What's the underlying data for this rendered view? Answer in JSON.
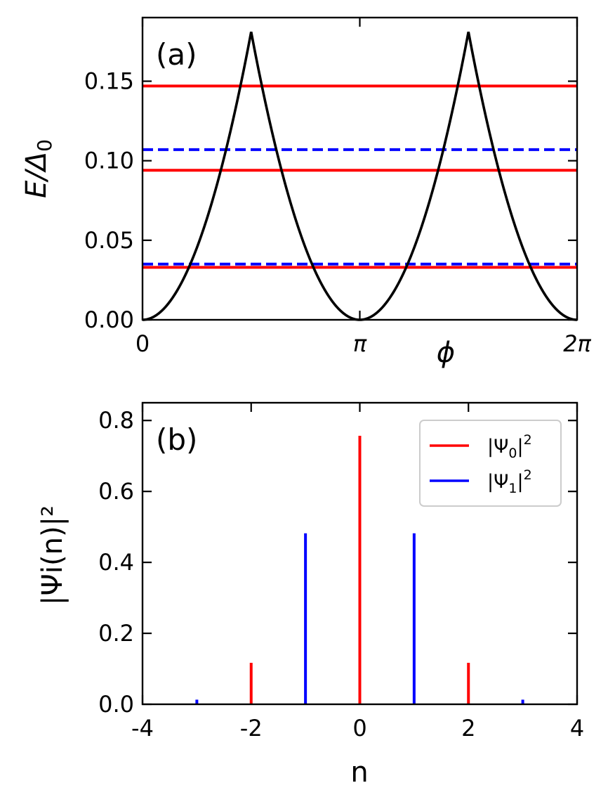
{
  "chart_data": [
    {
      "panel_label": "(a)",
      "type": "line",
      "xlabel": "ϕ",
      "ylabel_main": "E/Δ",
      "ylabel_sub": "0",
      "xlim": [
        0,
        6.283185
      ],
      "ylim": [
        0,
        0.19
      ],
      "xticks": [
        {
          "value": 0,
          "label": "0"
        },
        {
          "value": 3.141593,
          "label": "π"
        },
        {
          "value": 6.283185,
          "label": "2π"
        }
      ],
      "yticks": [
        {
          "value": 0.0,
          "label": "0.00"
        },
        {
          "value": 0.05,
          "label": "0.05"
        },
        {
          "value": 0.1,
          "label": "0.10"
        },
        {
          "value": 0.15,
          "label": "0.15"
        }
      ],
      "series": [
        {
          "name": "dispersion",
          "color": "#000000",
          "style": "solid",
          "peak_x": [
            1.5708,
            4.7124
          ],
          "peak_y": 0.181,
          "minima_x": [
            0,
            3.141593,
            6.283185
          ]
        },
        {
          "name": "red level 1",
          "color": "#ff0000",
          "style": "solid",
          "y": 0.147
        },
        {
          "name": "red level 2",
          "color": "#ff0000",
          "style": "solid",
          "y": 0.094
        },
        {
          "name": "red level 3",
          "color": "#ff0000",
          "style": "solid",
          "y": 0.033
        },
        {
          "name": "blue level 1",
          "color": "#0000ff",
          "style": "dashed",
          "y": 0.107
        },
        {
          "name": "blue level 2",
          "color": "#0000ff",
          "style": "dashed",
          "y": 0.035
        }
      ]
    },
    {
      "panel_label": "(b)",
      "type": "bar",
      "xlabel": "n",
      "ylabel": "|Ψi(n)|²",
      "xlim": [
        -4,
        4
      ],
      "ylim": [
        0,
        0.85
      ],
      "xticks": [
        {
          "value": -4,
          "label": "-4"
        },
        {
          "value": -2,
          "label": "-2"
        },
        {
          "value": 0,
          "label": "0"
        },
        {
          "value": 2,
          "label": "2"
        },
        {
          "value": 4,
          "label": "4"
        }
      ],
      "yticks": [
        {
          "value": 0.0,
          "label": "0.0"
        },
        {
          "value": 0.2,
          "label": "0.2"
        },
        {
          "value": 0.4,
          "label": "0.4"
        },
        {
          "value": 0.6,
          "label": "0.6"
        },
        {
          "value": 0.8,
          "label": "0.8"
        }
      ],
      "series": [
        {
          "name": "|Ψ₀|²",
          "color": "#ff0000",
          "x": [
            -2,
            0,
            2
          ],
          "values": [
            0.117,
            0.757,
            0.117
          ]
        },
        {
          "name": "|Ψ₁|²",
          "color": "#0000ff",
          "x": [
            -3,
            -1,
            1,
            3
          ],
          "values": [
            0.013,
            0.482,
            0.482,
            0.013
          ]
        }
      ],
      "legend": {
        "position": "upper-right",
        "entries": [
          {
            "main": "|Ψ",
            "sub": "0",
            "tail": "|",
            "sup": "2",
            "color": "#ff0000"
          },
          {
            "main": "|Ψ",
            "sub": "1",
            "tail": "|",
            "sup": "2",
            "color": "#0000ff"
          }
        ]
      }
    }
  ]
}
